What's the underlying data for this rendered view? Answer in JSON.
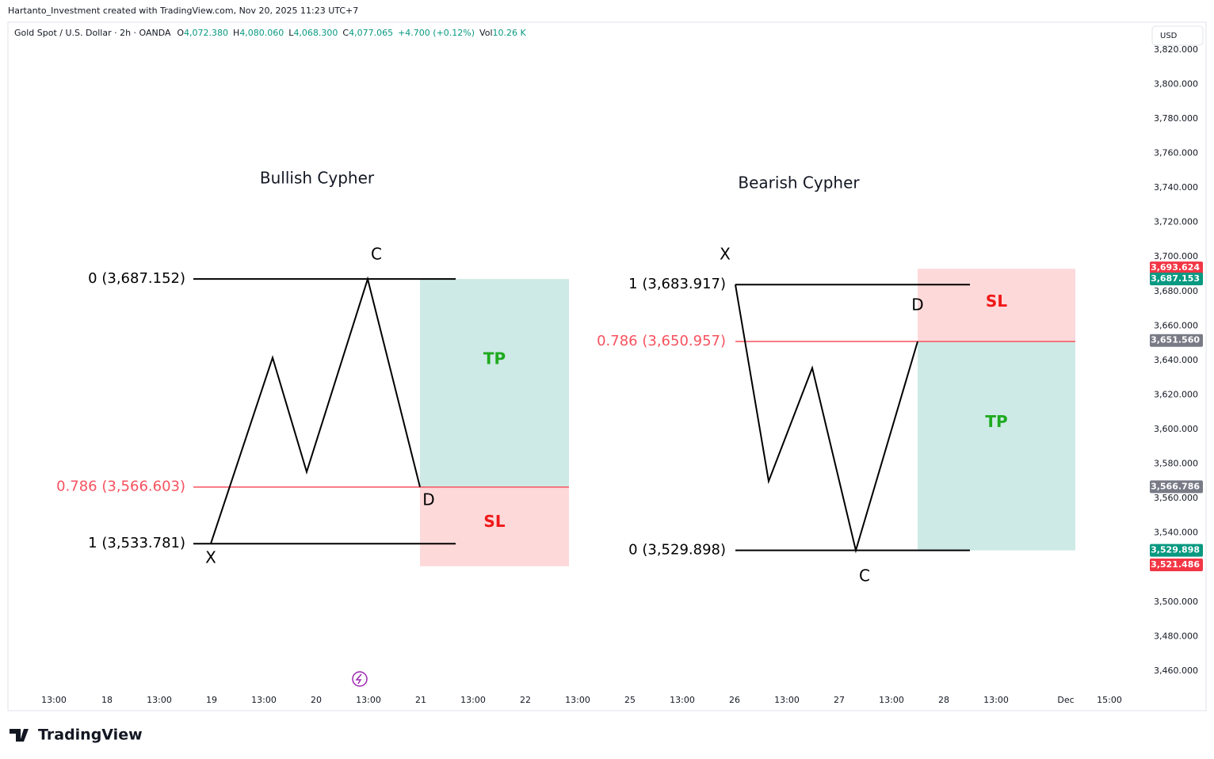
{
  "header": {
    "attribution": "Hartanto_Investment created with TradingView.com, Nov 20, 2025 11:23 UTC+7",
    "symbol": "Gold Spot / U.S. Dollar · 2h · OANDA",
    "ohlc": [
      {
        "key": "O",
        "value": "4,072.380"
      },
      {
        "key": "H",
        "value": "4,080.060"
      },
      {
        "key": "L",
        "value": "4,068.300"
      },
      {
        "key": "C",
        "value": "4,077.065"
      }
    ],
    "change": "+4.700 (+0.12%)",
    "vol_key": "Vol",
    "vol": "10.26 K"
  },
  "currency": "USD",
  "logo": "TradingView",
  "chart_data": {
    "type": "line",
    "ylim": [
      3437,
      3836
    ],
    "yticks": [
      {
        "value": 3820,
        "label": "3,820.000"
      },
      {
        "value": 3800,
        "label": "3,800.000"
      },
      {
        "value": 3780,
        "label": "3,780.000"
      },
      {
        "value": 3760,
        "label": "3,760.000"
      },
      {
        "value": 3740,
        "label": "3,740.000"
      },
      {
        "value": 3720,
        "label": "3,720.000"
      },
      {
        "value": 3700,
        "label": "3,700.000"
      },
      {
        "value": 3680,
        "label": "3,680.000"
      },
      {
        "value": 3660,
        "label": "3,660.000"
      },
      {
        "value": 3640,
        "label": "3,640.000"
      },
      {
        "value": 3620,
        "label": "3,620.000"
      },
      {
        "value": 3600,
        "label": "3,600.000"
      },
      {
        "value": 3580,
        "label": "3,580.000"
      },
      {
        "value": 3560,
        "label": "3,560.000"
      },
      {
        "value": 3540,
        "label": "3,540.000"
      },
      {
        "value": 3520,
        "label": "3,520.000"
      },
      {
        "value": 3500,
        "label": "3,500.000"
      },
      {
        "value": 3480,
        "label": "3,480.000"
      },
      {
        "value": 3460,
        "label": "3,460.000"
      }
    ],
    "categories": [
      "13:00",
      "18",
      "13:00",
      "19",
      "13:00",
      "20",
      "13:00",
      "21",
      "13:00",
      "22",
      "13:00",
      "25",
      "13:00",
      "26",
      "13:00",
      "27",
      "13:00",
      "28",
      "13:00",
      "Dec",
      "15:00"
    ],
    "price_tags": [
      {
        "value": 3693.624,
        "label": "3,693.624",
        "color": "#f23645"
      },
      {
        "value": 3687.153,
        "label": "3,687.153",
        "color": "#089981"
      },
      {
        "value": 3651.56,
        "label": "3,651.560",
        "color": "#787b86"
      },
      {
        "value": 3566.786,
        "label": "3,566.786",
        "color": "#787b86"
      },
      {
        "value": 3529.898,
        "label": "3,529.898",
        "color": "#089981"
      },
      {
        "value": 3521.486,
        "label": "3,521.486",
        "color": "#f23645"
      }
    ],
    "patterns": [
      {
        "name": "Bullish Cypher",
        "points": [
          {
            "label": "X",
            "value": 3533.781
          },
          {
            "label": null,
            "value": 3641.6
          },
          {
            "label": null,
            "value": 3575.4
          },
          {
            "label": "C",
            "value": 3687.152
          },
          {
            "label": "D",
            "value": 3566.603
          }
        ],
        "levels": [
          {
            "label": "0 (3,687.152)",
            "value": 3687.152,
            "color": "#000000"
          },
          {
            "label": "0.786 (3,566.603)",
            "value": 3566.603,
            "color": "#f7525f"
          },
          {
            "label": "1 (3,533.781)",
            "value": 3533.781,
            "color": "#000000"
          }
        ],
        "boxes": [
          {
            "label": "TP",
            "top": 3687.152,
            "bottom": 3566.603,
            "color": "#cdeae6",
            "text_color": "#1faa1f"
          },
          {
            "label": "SL",
            "top": 3566.603,
            "bottom": 3520.7,
            "color": "#fdd9d9",
            "text_color": "#f01818"
          }
        ]
      },
      {
        "name": "Bearish Cypher",
        "points": [
          {
            "label": "X",
            "value": 3683.917
          },
          {
            "label": null,
            "value": 3570
          },
          {
            "label": null,
            "value": 3635.6
          },
          {
            "label": "C",
            "value": 3529.898
          },
          {
            "label": "D",
            "value": 3650.957
          }
        ],
        "levels": [
          {
            "label": "1 (3,683.917)",
            "value": 3683.917,
            "color": "#000000"
          },
          {
            "label": "0.786 (3,650.957)",
            "value": 3650.957,
            "color": "#f7525f"
          },
          {
            "label": "0 (3,529.898)",
            "value": 3529.898,
            "color": "#000000"
          }
        ],
        "boxes": [
          {
            "label": "SL",
            "top": 3693.1,
            "bottom": 3650.957,
            "color": "#fdd9d9",
            "text_color": "#f01818"
          },
          {
            "label": "TP",
            "top": 3650.957,
            "bottom": 3529.898,
            "color": "#cdeae6",
            "text_color": "#1faa1f"
          }
        ]
      }
    ]
  }
}
